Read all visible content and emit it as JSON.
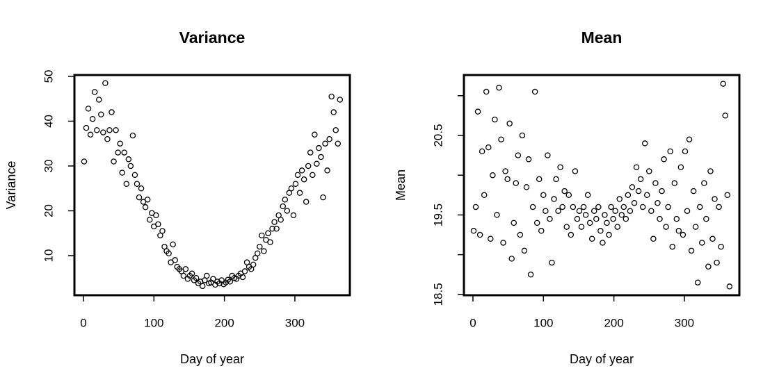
{
  "chart_data": [
    {
      "type": "scatter",
      "title": "Variance",
      "x_label": "Day of year",
      "y_label": "Variance",
      "color": "#000000",
      "x": [
        1,
        4,
        7,
        10,
        13,
        16,
        19,
        22,
        25,
        28,
        31,
        34,
        37,
        40,
        43,
        46,
        49,
        52,
        55,
        58,
        61,
        64,
        67,
        70,
        73,
        76,
        79,
        82,
        85,
        88,
        91,
        94,
        97,
        100,
        103,
        106,
        109,
        112,
        115,
        118,
        121,
        124,
        127,
        130,
        133,
        136,
        139,
        142,
        145,
        148,
        151,
        154,
        157,
        160,
        163,
        166,
        169,
        172,
        175,
        178,
        181,
        184,
        187,
        190,
        193,
        196,
        199,
        202,
        205,
        208,
        211,
        214,
        217,
        220,
        223,
        226,
        229,
        232,
        235,
        238,
        241,
        244,
        247,
        250,
        253,
        256,
        259,
        262,
        265,
        268,
        271,
        274,
        277,
        280,
        283,
        286,
        289,
        292,
        295,
        298,
        301,
        304,
        307,
        310,
        313,
        316,
        319,
        322,
        325,
        328,
        331,
        334,
        337,
        340,
        343,
        346,
        349,
        352,
        355,
        358,
        361,
        364
      ],
      "values": [
        31,
        38.5,
        42.8,
        37,
        40.5,
        46.5,
        38,
        44.8,
        41.5,
        37.5,
        48.5,
        36,
        38,
        42,
        31,
        38,
        33,
        35,
        28.5,
        33,
        26,
        31.5,
        30,
        36.8,
        28,
        26,
        23,
        25,
        22,
        20.8,
        22.5,
        18,
        19.5,
        16.5,
        19,
        17,
        14.5,
        15.5,
        12,
        11,
        10.5,
        8.5,
        12.5,
        9,
        7.5,
        7,
        6.5,
        5.5,
        7,
        4.8,
        5.5,
        6,
        4.5,
        5,
        3.8,
        4.2,
        3.2,
        4.5,
        5.5,
        3.8,
        4,
        4.8,
        3.5,
        4.2,
        3.8,
        4.5,
        3.6,
        4,
        4.6,
        4.2,
        5.5,
        5,
        4.8,
        5.5,
        6,
        5.2,
        6.5,
        8.5,
        7.5,
        7,
        8,
        9.5,
        10.5,
        12,
        14.5,
        11,
        13.5,
        15,
        13,
        16,
        17.5,
        16,
        19,
        18,
        21,
        22.5,
        20,
        24,
        25,
        19,
        26,
        28,
        24,
        29,
        27,
        22,
        30,
        33,
        28,
        37,
        30.5,
        34,
        32,
        23,
        35,
        29,
        36,
        45.5,
        42,
        38,
        35,
        44.8
      ],
      "xlim": [
        -12.8,
        378
      ],
      "ylim": [
        1.16,
        50.3
      ],
      "xticks": [
        0,
        100,
        200,
        300
      ],
      "yticks": [
        10,
        20,
        30,
        40,
        50
      ]
    },
    {
      "type": "scatter",
      "title": "Mean",
      "x_label": "Day of year",
      "y_label": "Mean",
      "color": "#000000",
      "x": [
        1,
        4,
        7,
        10,
        13,
        16,
        19,
        22,
        25,
        28,
        31,
        34,
        37,
        40,
        43,
        46,
        49,
        52,
        55,
        58,
        61,
        64,
        67,
        70,
        73,
        76,
        79,
        82,
        85,
        88,
        91,
        94,
        97,
        100,
        103,
        106,
        109,
        112,
        115,
        118,
        121,
        124,
        127,
        130,
        133,
        136,
        139,
        142,
        145,
        148,
        151,
        154,
        157,
        160,
        163,
        166,
        169,
        172,
        175,
        178,
        181,
        184,
        187,
        190,
        193,
        196,
        199,
        202,
        205,
        208,
        211,
        214,
        217,
        220,
        223,
        226,
        229,
        232,
        235,
        238,
        241,
        244,
        247,
        250,
        253,
        256,
        259,
        262,
        265,
        268,
        271,
        274,
        277,
        280,
        283,
        286,
        289,
        292,
        295,
        298,
        301,
        304,
        307,
        310,
        313,
        316,
        319,
        322,
        325,
        328,
        331,
        334,
        337,
        340,
        343,
        346,
        349,
        352,
        355,
        358,
        361,
        364
      ],
      "values": [
        19.3,
        19.6,
        20.8,
        19.25,
        20.3,
        19.75,
        21.05,
        20.35,
        19.2,
        20.0,
        20.7,
        19.5,
        21.1,
        20.45,
        19.15,
        20.05,
        19.95,
        20.65,
        18.95,
        19.4,
        19.9,
        20.25,
        19.25,
        20.5,
        19.05,
        19.85,
        20.2,
        18.75,
        19.6,
        21.05,
        19.4,
        19.95,
        19.3,
        19.75,
        19.55,
        20.25,
        19.45,
        18.9,
        19.7,
        19.95,
        19.55,
        20.1,
        19.6,
        19.8,
        19.35,
        19.75,
        19.25,
        19.6,
        20.05,
        19.45,
        19.55,
        19.35,
        19.6,
        19.5,
        19.75,
        19.4,
        19.2,
        19.55,
        19.45,
        19.6,
        19.3,
        19.15,
        19.5,
        19.4,
        19.25,
        19.6,
        19.45,
        19.55,
        19.35,
        19.7,
        19.5,
        19.6,
        19.45,
        19.75,
        19.55,
        19.85,
        19.65,
        20.1,
        19.8,
        19.95,
        19.6,
        20.4,
        19.75,
        20.05,
        19.55,
        19.2,
        19.9,
        19.65,
        19.45,
        19.8,
        20.2,
        19.35,
        19.6,
        20.3,
        19.1,
        19.9,
        19.45,
        19.3,
        20.1,
        19.25,
        20.3,
        19.55,
        20.45,
        19.05,
        19.8,
        19.35,
        18.65,
        19.6,
        19.15,
        19.9,
        19.45,
        18.85,
        20.05,
        19.2,
        19.7,
        18.9,
        19.6,
        19.1,
        21.15,
        20.75,
        19.75,
        18.6
      ],
      "xlim": [
        -12.8,
        378
      ],
      "ylim": [
        18.49,
        21.26
      ],
      "xticks": [
        0,
        100,
        200,
        300
      ],
      "yticks": [
        {
          "value": 18.5,
          "label": "18.5"
        },
        {
          "value": 19,
          "label": null
        },
        {
          "value": 19.5,
          "label": "19.5"
        },
        {
          "value": 20,
          "label": null
        },
        {
          "value": 20.5,
          "label": "20.5"
        },
        {
          "value": 21,
          "label": null
        }
      ]
    }
  ]
}
